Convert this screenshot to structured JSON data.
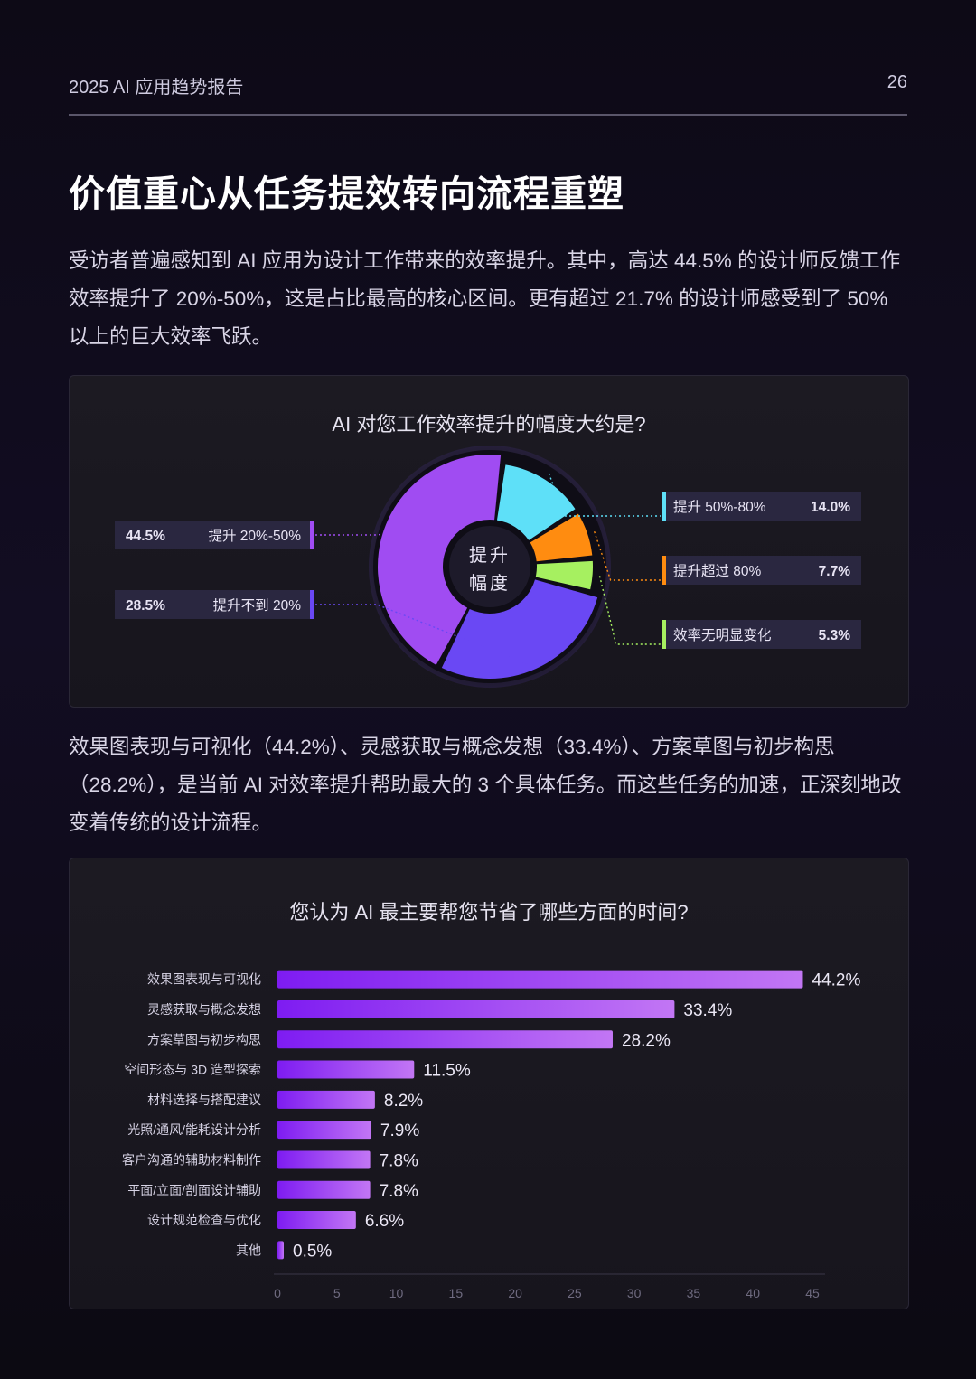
{
  "header": {
    "report": "2025 AI 应用趋势报告",
    "page": "26"
  },
  "title": "价值重心从任务提效转向流程重塑",
  "paragraphs": {
    "p1": "受访者普遍感知到 AI 应用为设计工作带来的效率提升。其中，高达 44.5% 的设计师反馈工作效率提升了 20%-50%，这是占比最高的核心区间。更有超过 21.7% 的设计师感受到了 50% 以上的巨大效率飞跃。",
    "p2": "效果图表现与可视化（44.2%）、灵感获取与概念发想（33.4%）、方案草图与初步构思（28.2%），是当前 AI 对效率提升帮助最大的 3 个具体任务。而这些任务的加速，正深刻地改变着传统的设计流程。"
  },
  "chart_data": [
    {
      "type": "pie",
      "title": "AI 对您工作效率提升的幅度大约是?",
      "center_label": [
        "提升",
        "幅度"
      ],
      "slices": [
        {
          "label": "提升 20%-50%",
          "value": 44.5,
          "value_label": "44.5%",
          "color": "#a04cf2"
        },
        {
          "label": "提升 50%-80%",
          "value": 14.0,
          "value_label": "14.0%",
          "color": "#5ee0f8"
        },
        {
          "label": "提升超过 80%",
          "value": 7.7,
          "value_label": "7.7%",
          "color": "#ff8c10"
        },
        {
          "label": "效率无明显变化",
          "value": 5.3,
          "value_label": "5.3%",
          "color": "#a6f060"
        },
        {
          "label": "提升不到 20%",
          "value": 28.5,
          "value_label": "28.5%",
          "color": "#6a48f4"
        }
      ]
    },
    {
      "type": "bar",
      "orientation": "horizontal",
      "title": "您认为 AI 最主要帮您节省了哪些方面的时间?",
      "categories": [
        "效果图表现与可视化",
        "灵感获取与概念发想",
        "方案草图与初步构思",
        "空间形态与 3D 造型探索",
        "材料选择与搭配建议",
        "光照/通风/能耗设计分析",
        "客户沟通的辅助材料制作",
        "平面/立面/剖面设计辅助",
        "设计规范检查与优化",
        "其他"
      ],
      "values": [
        44.2,
        33.4,
        28.2,
        11.5,
        8.2,
        7.9,
        7.8,
        7.8,
        6.6,
        0.5
      ],
      "value_labels": [
        "44.2%",
        "33.4%",
        "28.2%",
        "11.5%",
        "8.2%",
        "7.9%",
        "7.8%",
        "7.8%",
        "6.6%",
        "0.5%"
      ],
      "xlim": [
        0,
        45
      ],
      "xticks": [
        "0",
        "5",
        "10",
        "15",
        "20",
        "25",
        "30",
        "35",
        "40",
        "45"
      ],
      "colors": {
        "bar_start": "#7e1cf2",
        "bar_end": "#c276f4"
      }
    }
  ]
}
